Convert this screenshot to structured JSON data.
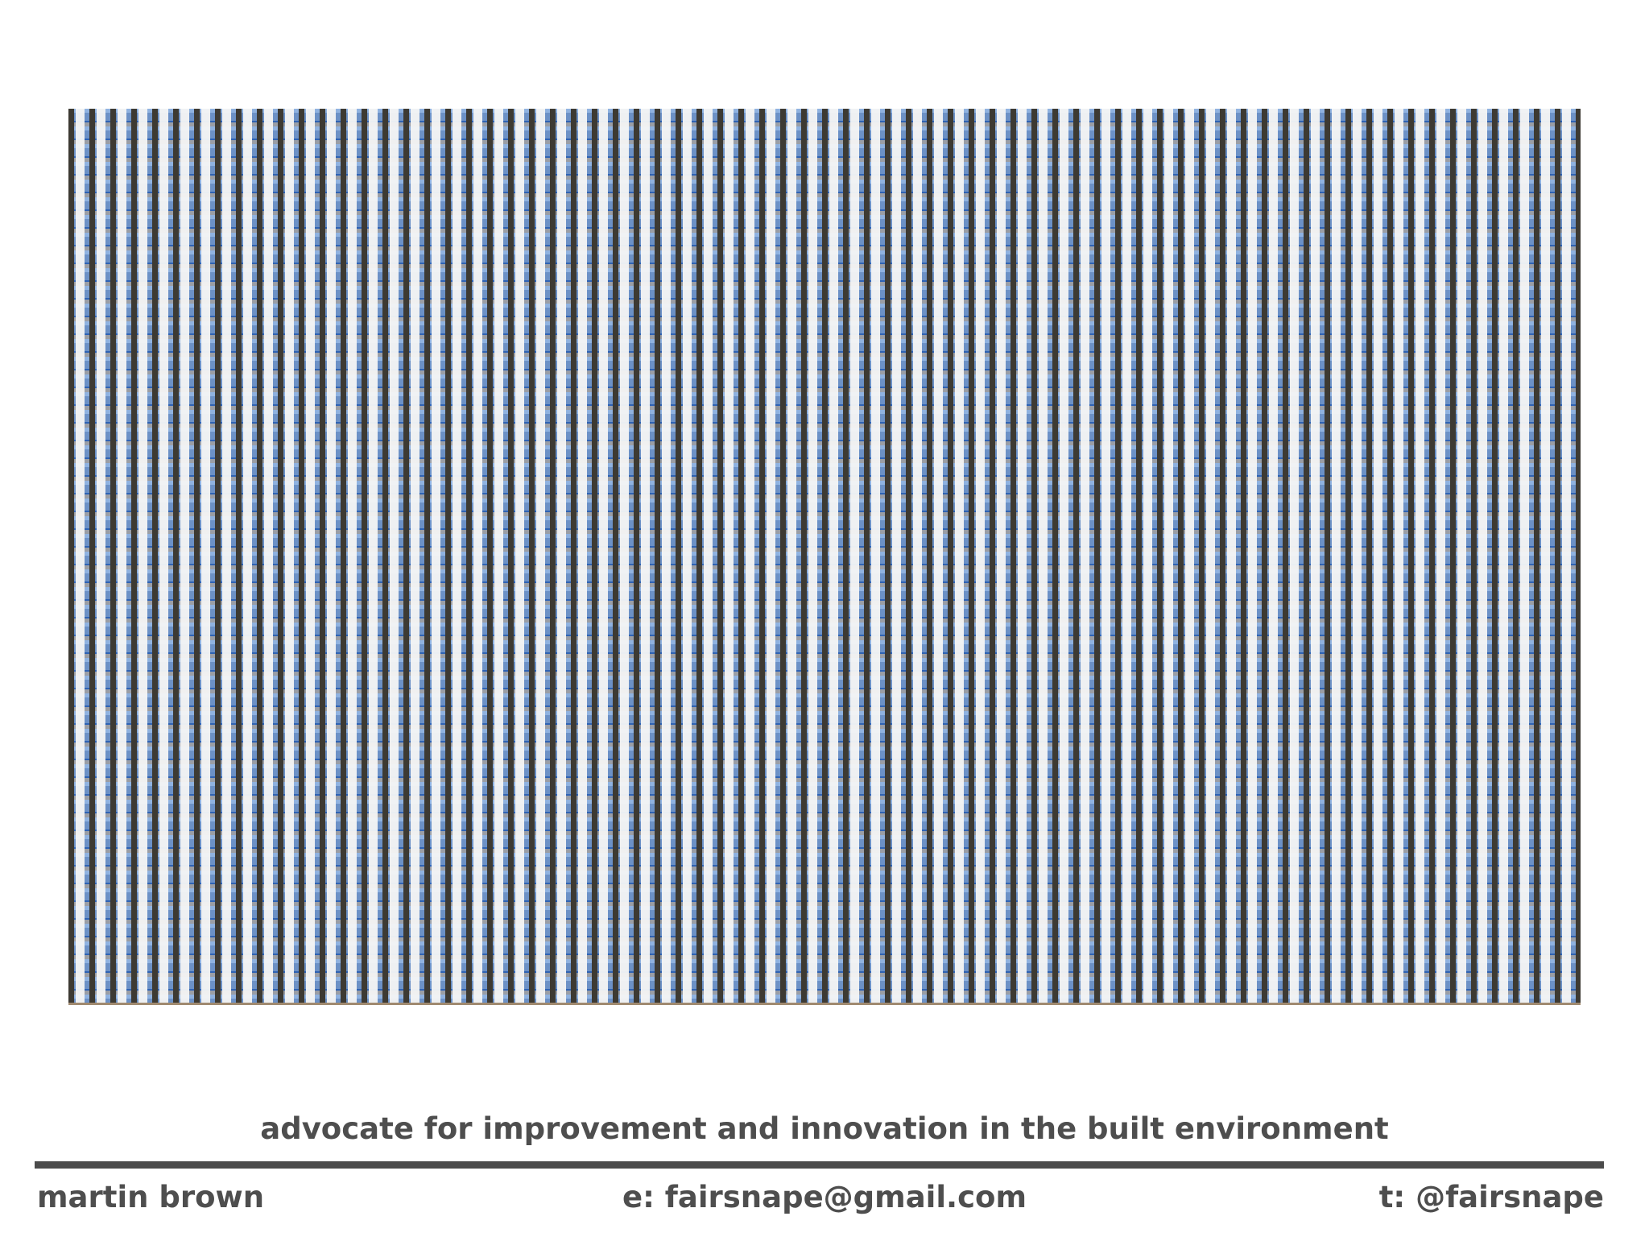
{
  "tagline": "advocate for improvement and innovation in the built environment",
  "footer": {
    "name": "martin brown",
    "email": "e: fairsnape@gmail.com",
    "twitter": "t: @fairsnape"
  }
}
